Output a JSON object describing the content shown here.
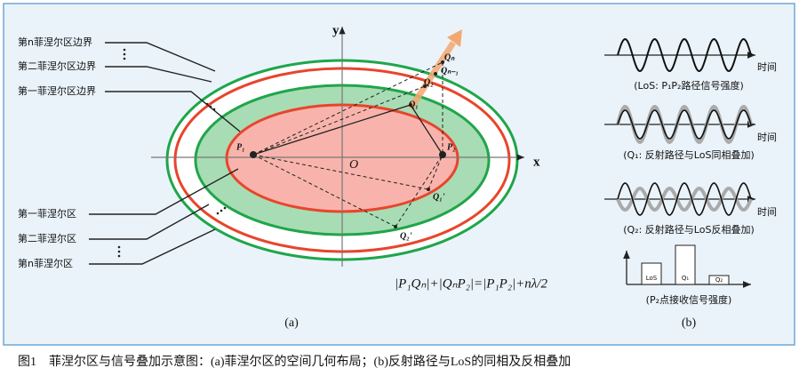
{
  "left_labels": [
    "第n菲涅尔区边界",
    "第二菲涅尔区边界",
    "第一菲涅尔区边界",
    "第一菲涅尔区",
    "第二菲涅尔区",
    "第n菲涅尔区"
  ],
  "axes": {
    "x": "x",
    "y": "y",
    "origin": "O"
  },
  "points": {
    "p1": "P₁",
    "p2": "P₂",
    "q1": "Q₁",
    "q2": "Q₂",
    "qn_1": "Qₙ₋₁",
    "qn": "Qₙ",
    "q1p": "Q₁'",
    "q2p": "Q₂'"
  },
  "formula": "|P₁Qₙ|+|QₙP₂|=|P₁P₂|+nλ/2",
  "panel_a": "(a)",
  "panel_b": "(b)",
  "waves": [
    {
      "time": "时间",
      "caption": "(LoS: P₁P₂路径信号强度)"
    },
    {
      "time": "时间",
      "caption": "(Q₁: 反射路径与LoS同相叠加)"
    },
    {
      "time": "时间",
      "caption": "(Q₂: 反射路径与LoS反相叠加)"
    }
  ],
  "bars": {
    "labels": [
      "LoS",
      "Q₁",
      "Q₂"
    ],
    "caption": "(P₂点接收信号强度)"
  },
  "caption": "图1　菲涅尔区与信号叠加示意图：(a)菲涅尔区的空间几何布局；(b)反射路径与LoS的同相及反相叠加"
}
